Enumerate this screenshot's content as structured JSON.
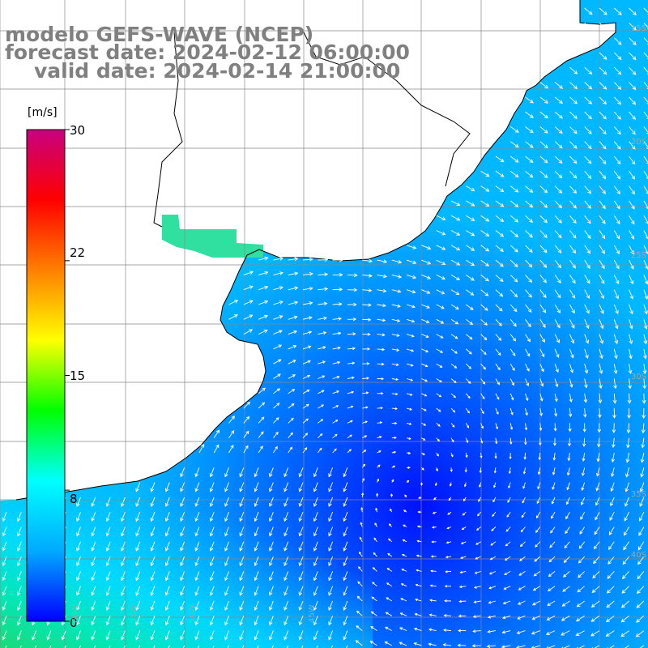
{
  "title": {
    "line1": "modelo GEFS-WAVE (NCEP)",
    "line2": "forecast date: 2024-02-12 06:00:00",
    "line3": "valid date: 2024-02-14 21:00:00"
  },
  "colorbar": {
    "unit": "[m/s]",
    "ticks": [
      "30",
      "22",
      "15",
      "8",
      "0"
    ],
    "tick_values": [
      30,
      22,
      15,
      8,
      0
    ],
    "colors": [
      "#0000ff",
      "#00aaff",
      "#00ffff",
      "#00ff00",
      "#ffff00",
      "#ff8000",
      "#ff0000",
      "#c80080"
    ]
  },
  "map": {
    "land_color": "#ffffff",
    "coastline_color": "#000000",
    "grid_color": "#888888",
    "arrow_color": "#ffffff",
    "lat_labels": [
      "15S",
      "20S",
      "25S",
      "30S",
      "35S",
      "40S"
    ],
    "lon_labels": [
      "60W",
      "55W",
      "50W",
      "45W"
    ]
  }
}
